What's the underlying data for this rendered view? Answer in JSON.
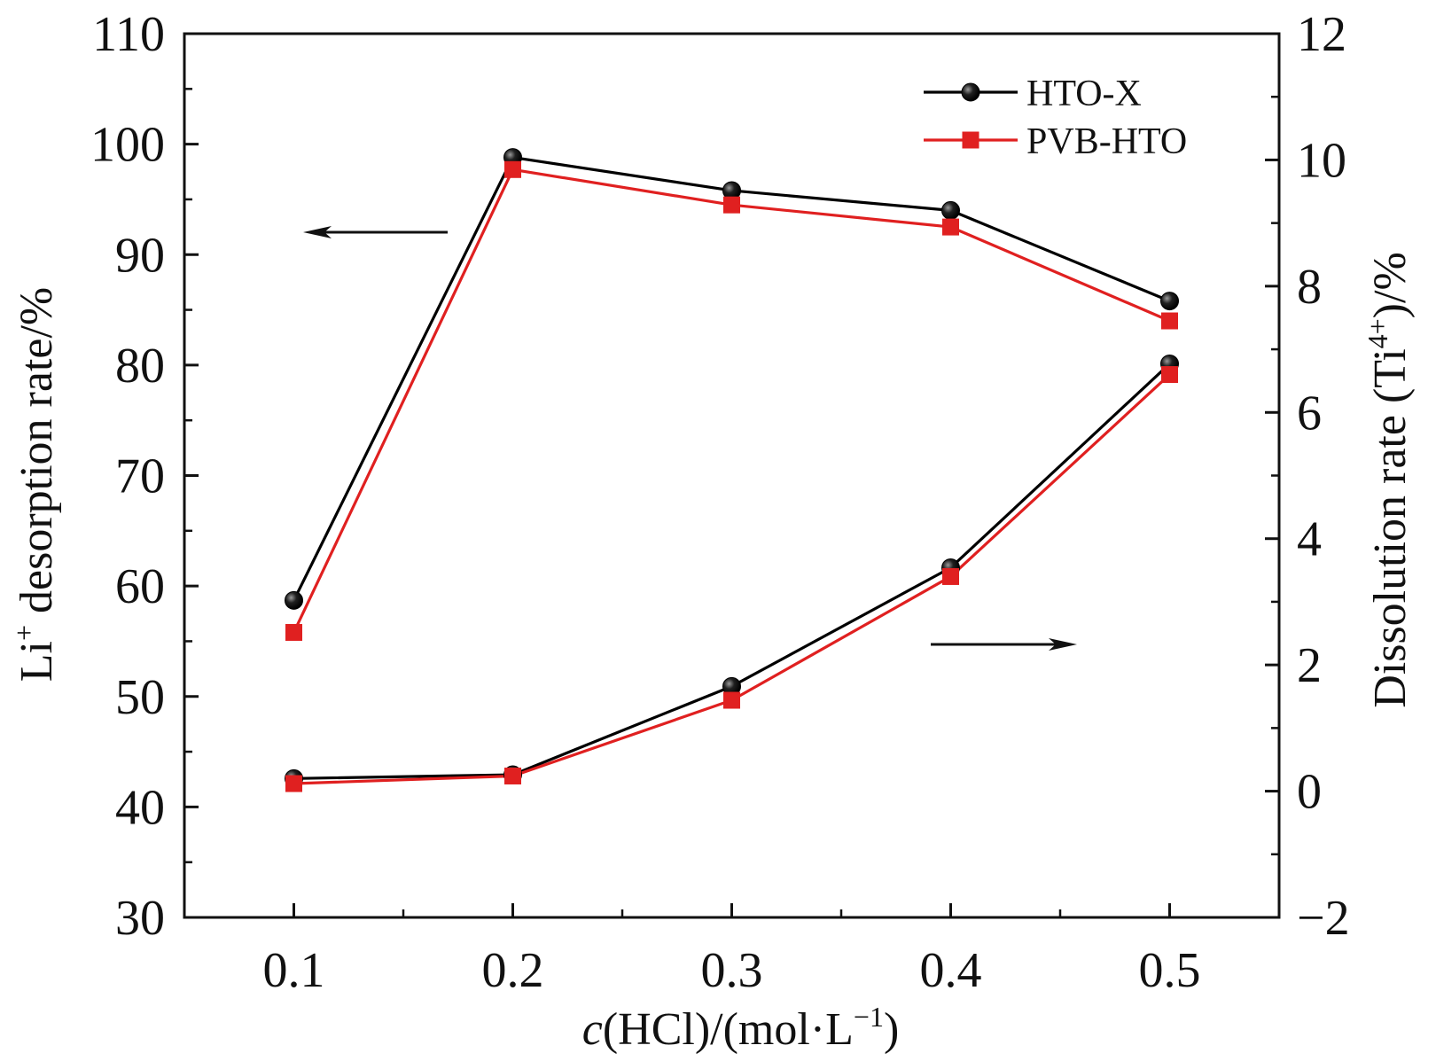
{
  "chart_data": {
    "type": "line",
    "x": [
      0.1,
      0.2,
      0.3,
      0.4,
      0.5
    ],
    "x_tick_labels": [
      "0.1",
      "0.2",
      "0.3",
      "0.4",
      "0.5"
    ],
    "xlim": [
      0.05,
      0.55
    ],
    "xlabel": {
      "italic": "c",
      "text": "(HCl)/(mol·L",
      "sup": "−1",
      "end": ")"
    },
    "left_axis": {
      "ylim": [
        30,
        110
      ],
      "ticks": [
        30,
        40,
        50,
        60,
        70,
        80,
        90,
        100,
        110
      ],
      "tick_labels": [
        "30",
        "40",
        "50",
        "60",
        "70",
        "80",
        "90",
        "100",
        "110"
      ],
      "label": {
        "pre": "Li",
        "sup": "+",
        "post": " desorption rate/%"
      }
    },
    "right_axis": {
      "ylim": [
        -2,
        12
      ],
      "ticks": [
        -2,
        0,
        2,
        4,
        6,
        8,
        10,
        12
      ],
      "tick_labels": [
        "−2",
        "0",
        "2",
        "4",
        "6",
        "8",
        "10",
        "12"
      ],
      "label": {
        "pre": "Dissolution rate (Ti",
        "sup": "4+",
        "post": ")/%"
      }
    },
    "series": [
      {
        "name": "HTO-X",
        "axis": "left",
        "color": "#000000",
        "marker": "circle",
        "values": [
          58.7,
          98.8,
          95.8,
          94.0,
          85.8
        ]
      },
      {
        "name": "PVB-HTO",
        "axis": "left",
        "color": "#e02020",
        "marker": "square",
        "values": [
          55.8,
          97.7,
          94.5,
          92.5,
          84.0
        ]
      },
      {
        "name": "HTO-X",
        "axis": "right",
        "color": "#000000",
        "marker": "circle",
        "values": [
          0.2,
          0.26,
          1.66,
          3.54,
          6.77
        ]
      },
      {
        "name": "PVB-HTO",
        "axis": "right",
        "color": "#e02020",
        "marker": "square",
        "values": [
          0.12,
          0.24,
          1.44,
          3.4,
          6.6
        ]
      }
    ],
    "legend": {
      "position": "top-right",
      "entries": [
        {
          "label": "HTO-X",
          "color": "#000000",
          "marker": "circle"
        },
        {
          "label": "PVB-HTO",
          "color": "#e02020",
          "marker": "square"
        }
      ]
    },
    "annotations": [
      {
        "type": "arrow",
        "direction": "left",
        "meaning": "left axis"
      },
      {
        "type": "arrow",
        "direction": "right",
        "meaning": "right axis"
      }
    ],
    "grid": false
  }
}
